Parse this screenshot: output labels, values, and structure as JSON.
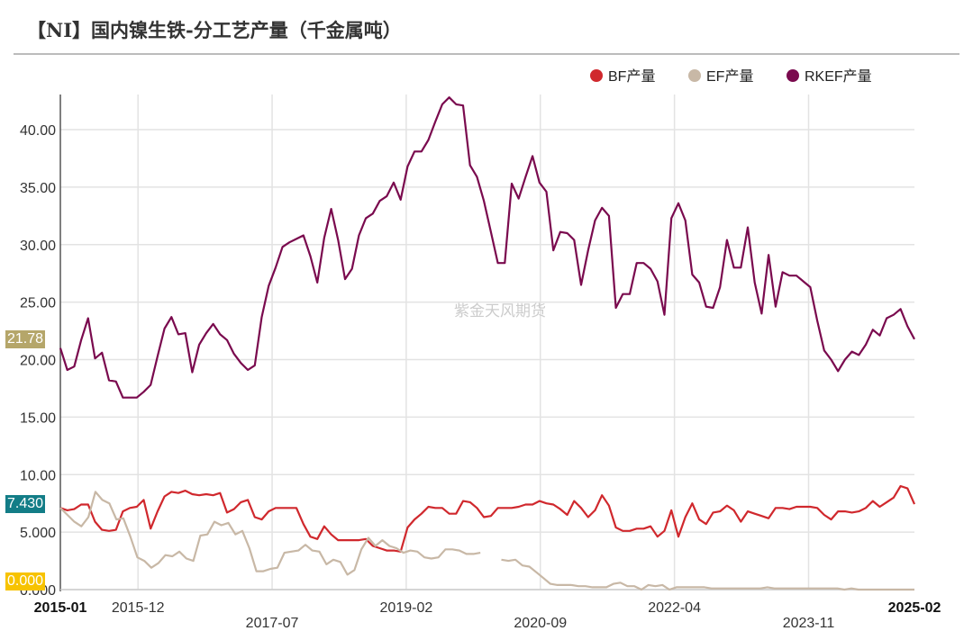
{
  "title": "【NI】国内镍生铁-分工艺产量（千金属吨）",
  "watermark": "紫金天风期货",
  "chart_data": {
    "type": "line",
    "title": "【NI】国内镍生铁-分工艺产量（千金属吨）",
    "x_range": [
      "2015-01",
      "2025-02"
    ],
    "x_ticks": [
      "2015-01",
      "2015-12",
      "2017-07",
      "2019-02",
      "2020-09",
      "2022-04",
      "2023-11",
      "2025-02"
    ],
    "y_ticks": [
      "0.000",
      "5.000",
      "10.00",
      "15.00",
      "20.00",
      "25.00",
      "30.00",
      "35.00",
      "40.00"
    ],
    "ylim": [
      0,
      43
    ],
    "grid": true,
    "legend_position": "top-right",
    "series": [
      {
        "name": "BF产量",
        "color": "#d0282d",
        "last_label": "7.430",
        "label_color": "#137d87",
        "values": [
          7.1,
          6.9,
          7.0,
          7.4,
          7.4,
          5.9,
          5.2,
          5.1,
          5.2,
          6.8,
          7.1,
          7.2,
          7.8,
          5.3,
          6.8,
          8.1,
          8.5,
          8.4,
          8.6,
          8.3,
          8.2,
          8.3,
          8.2,
          8.4,
          6.7,
          7.0,
          7.6,
          7.8,
          6.3,
          6.1,
          6.8,
          7.1,
          7.1,
          7.1,
          7.1,
          5.7,
          4.6,
          4.4,
          5.5,
          4.8,
          4.3,
          4.3,
          4.3,
          4.3,
          4.4,
          3.8,
          3.6,
          3.4,
          3.4,
          3.3,
          5.4,
          6.1,
          6.6,
          7.2,
          7.1,
          7.1,
          6.6,
          6.6,
          7.7,
          7.6,
          7.1,
          6.3,
          6.4,
          7.1,
          7.1,
          7.1,
          7.2,
          7.4,
          7.4,
          7.7,
          7.5,
          7.4,
          7.0,
          6.5,
          7.7,
          7.1,
          6.3,
          6.9,
          8.2,
          7.3,
          5.4,
          5.1,
          5.1,
          5.3,
          5.3,
          5.5,
          4.6,
          5.1,
          6.9,
          4.6,
          6.3,
          7.5,
          6.1,
          5.7,
          6.7,
          6.8,
          7.3,
          6.9,
          5.9,
          6.8,
          6.6,
          6.4,
          6.2,
          7.1,
          7.1,
          7.0,
          7.2,
          7.2,
          7.2,
          7.1,
          6.5,
          6.1,
          6.8,
          6.8,
          6.7,
          6.8,
          7.1,
          7.7,
          7.2,
          7.6,
          8.0,
          9.0,
          8.8,
          7.43
        ]
      },
      {
        "name": "EF产量",
        "color": "#c8b8a6",
        "last_label": "0.000",
        "label_color": "#f7c300",
        "values": [
          7.1,
          6.5,
          5.9,
          5.5,
          6.3,
          8.5,
          7.8,
          7.5,
          6.1,
          6.2,
          4.6,
          2.8,
          2.5,
          1.9,
          2.3,
          3.0,
          2.9,
          3.3,
          2.7,
          2.5,
          4.7,
          4.8,
          5.9,
          5.6,
          5.8,
          4.8,
          5.1,
          3.6,
          1.6,
          1.6,
          1.8,
          1.9,
          3.2,
          3.3,
          3.4,
          3.9,
          3.4,
          3.3,
          2.2,
          2.6,
          2.4,
          1.3,
          1.7,
          3.5,
          4.5,
          3.8,
          4.3,
          3.8,
          3.6,
          3.2,
          3.4,
          3.3,
          2.8,
          2.7,
          2.8,
          3.5,
          3.5,
          3.4,
          3.1,
          3.1,
          3.2,
          null,
          null,
          2.6,
          2.5,
          2.6,
          2.1,
          2.0,
          1.5,
          1.0,
          0.5,
          0.4,
          0.4,
          0.4,
          0.3,
          0.3,
          0.2,
          0.2,
          0.2,
          0.5,
          0.6,
          0.3,
          0.3,
          0.0,
          0.4,
          0.3,
          0.4,
          0.0,
          0.2,
          0.2,
          0.2,
          0.2,
          0.2,
          0.1,
          0.1,
          0.1,
          0.1,
          0.1,
          0.1,
          0.1,
          0.1,
          0.2,
          0.1,
          0.1,
          0.1,
          0.1,
          0.1,
          0.1,
          0.1,
          0.1,
          0.1,
          0.1,
          0.0,
          0.1,
          0,
          0,
          0,
          0,
          0,
          0,
          0,
          0,
          0
        ]
      },
      {
        "name": "RKEF产量",
        "color": "#7a0a4e",
        "last_label": "21.78",
        "label_color": "#b5a66a",
        "values": [
          21.0,
          19.1,
          19.4,
          21.7,
          23.6,
          20.1,
          20.6,
          18.2,
          18.1,
          16.7,
          16.7,
          16.7,
          17.2,
          17.8,
          20.3,
          22.7,
          23.7,
          22.2,
          22.3,
          18.9,
          21.3,
          22.3,
          23.1,
          22.2,
          21.7,
          20.5,
          19.7,
          19.1,
          19.5,
          23.7,
          26.4,
          28.0,
          29.8,
          30.2,
          30.5,
          30.8,
          29.0,
          26.7,
          30.6,
          33.1,
          30.4,
          27.0,
          27.9,
          30.8,
          32.3,
          32.7,
          33.8,
          34.2,
          35.4,
          33.9,
          36.8,
          38.1,
          38.1,
          39.1,
          40.7,
          42.2,
          42.8,
          42.2,
          42.1,
          36.9,
          35.9,
          33.8,
          31.1,
          28.4,
          28.4,
          35.3,
          34.0,
          35.9,
          37.7,
          35.4,
          34.6,
          29.5,
          31.1,
          31.0,
          30.4,
          26.5,
          29.5,
          32.1,
          33.2,
          32.5,
          24.5,
          25.7,
          25.7,
          28.4,
          28.4,
          27.9,
          26.8,
          23.9,
          32.3,
          33.6,
          32.1,
          27.4,
          26.7,
          24.6,
          24.5,
          26.3,
          30.4,
          28.0,
          28.0,
          31.5,
          26.7,
          24.0,
          29.1,
          24.6,
          27.6,
          27.3,
          27.3,
          26.8,
          26.3,
          23.4,
          20.8,
          20.0,
          19.0,
          20.0,
          20.7,
          20.4,
          21.3,
          22.6,
          22.1,
          23.6,
          23.9,
          24.4,
          22.9,
          21.78
        ]
      }
    ]
  }
}
